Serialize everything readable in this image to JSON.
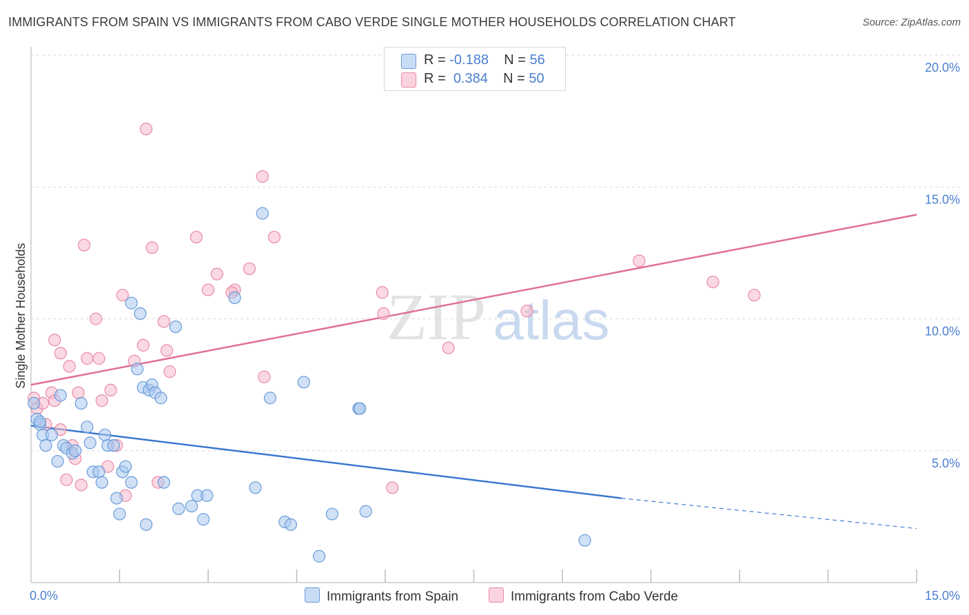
{
  "title": "IMMIGRANTS FROM SPAIN VS IMMIGRANTS FROM CABO VERDE SINGLE MOTHER HOUSEHOLDS CORRELATION CHART",
  "source": "Source: ZipAtlas.com",
  "watermark": {
    "zip": "ZIP",
    "atlas": "atlas"
  },
  "legend": {
    "rows": [
      {
        "r_label": "R =",
        "r_value": "-0.188",
        "n_label": "N =",
        "n_value": "56",
        "color": "#a9c8f0"
      },
      {
        "r_label": "R =",
        "r_value": "0.384",
        "n_label": "N =",
        "n_value": "50",
        "color": "#f7b9cc"
      }
    ]
  },
  "colors": {
    "spain_fill": "#a9c8f0",
    "spain_stroke": "#6a9bd8",
    "spain_line": "#3a78d0",
    "cabo_fill": "#f7b9cc",
    "cabo_stroke": "#e88aa6",
    "cabo_line": "#e07096",
    "tick_text": "#4a7fd0",
    "grid": "#d9d9d9"
  },
  "chart_data": {
    "type": "scatter",
    "title": "IMMIGRANTS FROM SPAIN VS IMMIGRANTS FROM CABO VERDE SINGLE MOTHER HOUSEHOLDS CORRELATION CHART",
    "xlabel": "",
    "ylabel": "Single Mother Households",
    "xlim": [
      0,
      15
    ],
    "ylim": [
      0,
      20
    ],
    "x_tick_labels": [
      "0.0%",
      "15.0%"
    ],
    "y_ticks": [
      5,
      10,
      15,
      20
    ],
    "y_tick_labels": [
      "5.0%",
      "10.0%",
      "15.0%",
      "20.0%"
    ],
    "series": [
      {
        "name": "Immigrants from Spain",
        "r": -0.188,
        "n": 56,
        "points": [
          [
            0.05,
            6.8
          ],
          [
            0.1,
            6.2
          ],
          [
            0.15,
            6.0
          ],
          [
            0.2,
            5.6
          ],
          [
            0.25,
            5.2
          ],
          [
            0.35,
            5.6
          ],
          [
            0.45,
            4.6
          ],
          [
            0.5,
            7.1
          ],
          [
            0.55,
            5.2
          ],
          [
            0.6,
            5.1
          ],
          [
            0.7,
            4.9
          ],
          [
            0.75,
            5.0
          ],
          [
            0.85,
            6.8
          ],
          [
            0.95,
            5.9
          ],
          [
            1.0,
            5.3
          ],
          [
            1.05,
            4.2
          ],
          [
            1.15,
            4.2
          ],
          [
            1.2,
            3.8
          ],
          [
            1.25,
            5.6
          ],
          [
            1.3,
            5.2
          ],
          [
            1.4,
            5.2
          ],
          [
            1.45,
            3.2
          ],
          [
            1.5,
            2.6
          ],
          [
            1.55,
            4.2
          ],
          [
            1.6,
            4.4
          ],
          [
            1.7,
            3.8
          ],
          [
            1.7,
            10.6
          ],
          [
            1.8,
            8.1
          ],
          [
            1.85,
            10.2
          ],
          [
            1.9,
            7.4
          ],
          [
            1.95,
            2.2
          ],
          [
            2.0,
            7.3
          ],
          [
            2.05,
            7.5
          ],
          [
            2.1,
            7.2
          ],
          [
            2.2,
            7.0
          ],
          [
            2.25,
            3.8
          ],
          [
            2.45,
            9.7
          ],
          [
            2.5,
            2.8
          ],
          [
            2.72,
            2.9
          ],
          [
            2.82,
            3.3
          ],
          [
            2.92,
            2.4
          ],
          [
            2.98,
            3.3
          ],
          [
            3.45,
            10.8
          ],
          [
            3.8,
            3.6
          ],
          [
            3.92,
            14.0
          ],
          [
            4.05,
            7.0
          ],
          [
            4.3,
            2.3
          ],
          [
            4.4,
            2.2
          ],
          [
            4.62,
            7.6
          ],
          [
            4.88,
            1.0
          ],
          [
            5.1,
            2.6
          ],
          [
            5.55,
            6.6
          ],
          [
            5.57,
            6.6
          ],
          [
            5.67,
            2.7
          ],
          [
            9.38,
            1.6
          ],
          [
            0.15,
            6.1
          ]
        ]
      },
      {
        "name": "Immigrants from Cabo Verde",
        "r": 0.384,
        "n": 50,
        "points": [
          [
            0.05,
            7.0
          ],
          [
            0.1,
            6.6
          ],
          [
            0.2,
            6.8
          ],
          [
            0.25,
            6.0
          ],
          [
            0.35,
            7.2
          ],
          [
            0.4,
            6.9
          ],
          [
            0.4,
            9.2
          ],
          [
            0.5,
            5.8
          ],
          [
            0.5,
            8.7
          ],
          [
            0.6,
            3.9
          ],
          [
            0.65,
            8.2
          ],
          [
            0.7,
            5.2
          ],
          [
            0.75,
            4.7
          ],
          [
            0.8,
            7.2
          ],
          [
            0.85,
            3.7
          ],
          [
            0.9,
            12.8
          ],
          [
            0.95,
            8.5
          ],
          [
            1.1,
            10.0
          ],
          [
            1.15,
            8.5
          ],
          [
            1.2,
            6.9
          ],
          [
            1.3,
            4.4
          ],
          [
            1.35,
            7.3
          ],
          [
            1.45,
            5.2
          ],
          [
            1.55,
            10.9
          ],
          [
            1.6,
            3.3
          ],
          [
            1.75,
            8.4
          ],
          [
            1.9,
            9.0
          ],
          [
            1.95,
            17.2
          ],
          [
            2.05,
            12.7
          ],
          [
            2.15,
            3.8
          ],
          [
            2.25,
            9.9
          ],
          [
            2.35,
            8.0
          ],
          [
            2.3,
            8.8
          ],
          [
            2.8,
            13.1
          ],
          [
            3.0,
            11.1
          ],
          [
            3.15,
            11.7
          ],
          [
            3.45,
            11.1
          ],
          [
            3.4,
            11.0
          ],
          [
            3.7,
            11.9
          ],
          [
            3.92,
            15.4
          ],
          [
            3.95,
            7.8
          ],
          [
            4.12,
            13.1
          ],
          [
            6.12,
            3.6
          ],
          [
            5.95,
            11.0
          ],
          [
            5.97,
            10.2
          ],
          [
            7.07,
            8.9
          ],
          [
            8.4,
            10.3
          ],
          [
            10.3,
            12.2
          ],
          [
            11.55,
            11.4
          ],
          [
            12.25,
            10.9
          ]
        ]
      }
    ],
    "trend_lines": [
      {
        "series": "Immigrants from Spain",
        "solid": [
          [
            0,
            5.95
          ],
          [
            10,
            3.2
          ]
        ],
        "dashed": [
          [
            10,
            3.2
          ],
          [
            15,
            2.05
          ]
        ]
      },
      {
        "series": "Immigrants from Cabo Verde",
        "solid": [
          [
            0,
            7.5
          ],
          [
            15,
            13.95
          ]
        ]
      }
    ]
  }
}
